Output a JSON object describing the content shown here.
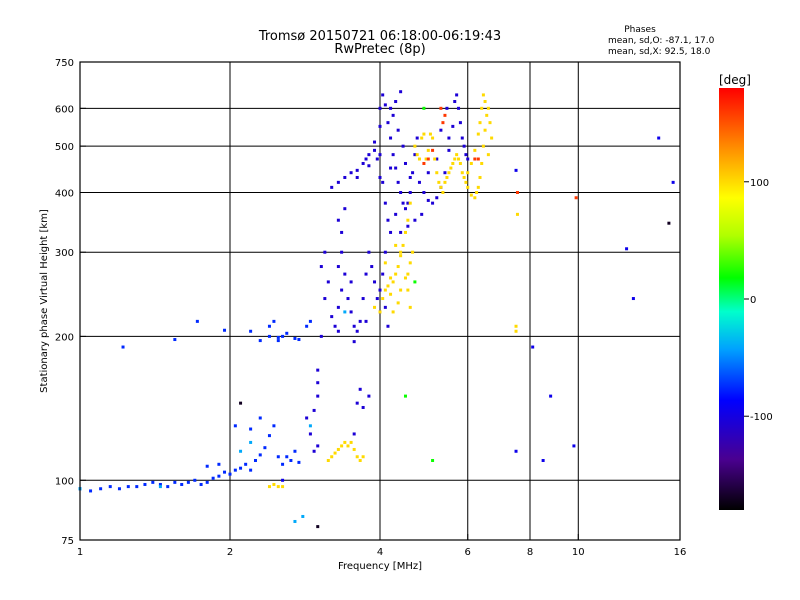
{
  "chart_data": {
    "type": "scatter",
    "title": "Tromsø 20150721 06:18:00-06:19:43",
    "subtitle": "RwPretec (8p)",
    "phase_stats": {
      "header": "Phases",
      "line1": "mean, sd,O: -87.1, 17.0",
      "line2": "mean, sd,X:  92.5, 18.0"
    },
    "xlabel": "Frequency [MHz]",
    "ylabel": "Stationary phase Virtual Height [km]",
    "x_scale": "log",
    "y_scale": "log",
    "xlim": [
      1,
      16
    ],
    "ylim": [
      75,
      750
    ],
    "x_ticks": [
      1,
      2,
      4,
      6,
      8,
      10,
      16
    ],
    "x_tick_labels": [
      "1",
      "2",
      "4",
      "6",
      "8",
      "10",
      "16"
    ],
    "y_ticks": [
      75,
      100,
      200,
      300,
      400,
      500,
      600,
      750
    ],
    "y_tick_labels": [
      "75",
      "100",
      "200",
      "300",
      "400",
      "500",
      "600",
      "750"
    ],
    "x_grid": [
      2,
      4,
      6,
      8,
      10
    ],
    "y_grid": [
      100,
      200,
      300,
      400,
      500,
      600
    ],
    "grid": true,
    "colorbar": {
      "label": "[deg]",
      "range": [
        -180,
        180
      ],
      "ticks": [
        100,
        0,
        -100
      ],
      "tick_labels": [
        "100",
        "0",
        "-100"
      ]
    },
    "series": [
      {
        "points": [
          [
            1.0,
            96
          ],
          [
            1.05,
            95
          ],
          [
            1.1,
            96
          ],
          [
            1.15,
            97
          ],
          [
            1.2,
            96
          ],
          [
            1.25,
            97
          ],
          [
            1.3,
            97
          ],
          [
            1.35,
            98
          ],
          [
            1.4,
            99
          ],
          [
            1.45,
            98
          ],
          [
            1.5,
            97
          ],
          [
            1.55,
            99
          ],
          [
            1.6,
            98
          ],
          [
            1.65,
            99
          ],
          [
            1.7,
            100
          ],
          [
            1.75,
            98
          ],
          [
            1.8,
            99
          ],
          [
            1.85,
            101
          ],
          [
            1.9,
            102
          ],
          [
            1.95,
            104
          ],
          [
            2.0,
            103
          ],
          [
            2.05,
            105
          ],
          [
            2.1,
            106
          ],
          [
            2.15,
            108
          ],
          [
            2.2,
            105
          ],
          [
            2.25,
            110
          ],
          [
            2.3,
            113
          ],
          [
            2.35,
            117
          ],
          [
            2.4,
            124
          ],
          [
            2.45,
            130
          ],
          [
            2.5,
            112
          ],
          [
            2.55,
            108
          ],
          [
            2.6,
            112
          ],
          [
            2.65,
            110
          ],
          [
            2.7,
            115
          ],
          [
            2.75,
            109
          ],
          [
            1.8,
            107
          ],
          [
            1.9,
            108
          ],
          [
            2.05,
            130
          ],
          [
            2.2,
            128
          ],
          [
            2.3,
            135
          ],
          [
            2.2,
            205
          ],
          [
            2.3,
            196
          ],
          [
            2.4,
            200
          ],
          [
            2.5,
            199
          ],
          [
            2.55,
            200
          ],
          [
            2.6,
            203
          ],
          [
            2.4,
            210
          ],
          [
            2.45,
            215
          ],
          [
            2.5,
            196
          ],
          [
            2.7,
            198
          ],
          [
            2.75,
            197
          ],
          [
            2.85,
            210
          ],
          [
            2.9,
            215
          ],
          [
            1.22,
            190
          ],
          [
            1.55,
            197
          ],
          [
            1.72,
            215
          ],
          [
            1.95,
            206
          ]
        ],
        "phase": -75
      },
      {
        "points": [
          [
            3.0,
            170
          ],
          [
            3.0,
            160
          ],
          [
            3.0,
            150
          ],
          [
            2.95,
            140
          ],
          [
            2.9,
            125
          ],
          [
            2.85,
            135
          ],
          [
            2.95,
            115
          ],
          [
            3.0,
            118
          ],
          [
            3.05,
            200
          ],
          [
            3.1,
            240
          ],
          [
            3.05,
            280
          ],
          [
            3.1,
            300
          ],
          [
            3.15,
            260
          ],
          [
            3.2,
            220
          ],
          [
            3.25,
            210
          ],
          [
            3.3,
            230
          ],
          [
            3.35,
            250
          ],
          [
            3.3,
            280
          ],
          [
            3.35,
            300
          ],
          [
            3.4,
            270
          ],
          [
            3.45,
            240
          ],
          [
            3.5,
            225
          ],
          [
            3.55,
            210
          ],
          [
            3.6,
            205
          ],
          [
            3.65,
            215
          ],
          [
            3.7,
            240
          ],
          [
            3.75,
            270
          ],
          [
            3.8,
            300
          ],
          [
            3.85,
            280
          ],
          [
            3.9,
            260
          ],
          [
            3.95,
            240
          ],
          [
            4.0,
            225
          ],
          [
            3.75,
            215
          ],
          [
            3.5,
            260
          ],
          [
            3.3,
            205
          ],
          [
            3.55,
            195
          ],
          [
            3.6,
            145
          ],
          [
            3.7,
            142
          ],
          [
            3.8,
            150
          ],
          [
            3.65,
            155
          ],
          [
            3.55,
            125
          ],
          [
            3.2,
            410
          ],
          [
            3.3,
            420
          ],
          [
            3.4,
            430
          ],
          [
            3.5,
            440
          ],
          [
            3.6,
            445
          ],
          [
            3.7,
            460
          ],
          [
            3.8,
            480
          ],
          [
            3.9,
            510
          ],
          [
            4.0,
            550
          ],
          [
            4.0,
            600
          ],
          [
            4.05,
            640
          ],
          [
            4.1,
            610
          ],
          [
            4.15,
            560
          ],
          [
            4.2,
            520
          ],
          [
            4.25,
            480
          ],
          [
            4.3,
            450
          ],
          [
            4.35,
            420
          ],
          [
            4.4,
            400
          ],
          [
            4.45,
            380
          ],
          [
            4.5,
            370
          ],
          [
            4.55,
            380
          ],
          [
            4.6,
            400
          ],
          [
            4.65,
            440
          ],
          [
            4.7,
            480
          ],
          [
            4.75,
            520
          ],
          [
            4.0,
            480
          ],
          [
            4.05,
            420
          ],
          [
            4.1,
            380
          ],
          [
            4.15,
            350
          ],
          [
            4.2,
            330
          ],
          [
            4.1,
            300
          ],
          [
            4.05,
            270
          ],
          [
            4.0,
            250
          ],
          [
            4.1,
            230
          ],
          [
            4.15,
            210
          ],
          [
            4.2,
            450
          ],
          [
            4.3,
            620
          ],
          [
            4.25,
            580
          ],
          [
            4.35,
            540
          ],
          [
            4.45,
            500
          ],
          [
            4.5,
            460
          ],
          [
            4.6,
            430
          ],
          [
            4.8,
            420
          ],
          [
            4.9,
            400
          ],
          [
            5.0,
            385
          ],
          [
            5.1,
            380
          ],
          [
            5.2,
            390
          ],
          [
            5.3,
            410
          ],
          [
            5.4,
            440
          ],
          [
            5.5,
            490
          ],
          [
            5.6,
            550
          ],
          [
            5.65,
            620
          ],
          [
            5.7,
            640
          ],
          [
            5.75,
            600
          ],
          [
            5.8,
            560
          ],
          [
            5.85,
            520
          ],
          [
            5.9,
            500
          ],
          [
            5.95,
            480
          ],
          [
            6.0,
            470
          ],
          [
            5.5,
            520
          ],
          [
            5.45,
            600
          ],
          [
            5.3,
            540
          ],
          [
            5.2,
            470
          ],
          [
            5.0,
            440
          ],
          [
            4.85,
            360
          ],
          [
            4.7,
            350
          ],
          [
            4.55,
            340
          ],
          [
            4.4,
            330
          ],
          [
            4.3,
            360
          ],
          [
            3.3,
            350
          ],
          [
            3.35,
            330
          ],
          [
            3.4,
            370
          ],
          [
            3.6,
            430
          ],
          [
            3.75,
            470
          ],
          [
            3.8,
            455
          ],
          [
            3.9,
            490
          ],
          [
            3.95,
            470
          ],
          [
            4.0,
            430
          ],
          [
            4.2,
            600
          ],
          [
            4.4,
            650
          ]
        ],
        "phase": -105
      },
      {
        "points": [
          [
            3.15,
            110
          ],
          [
            3.2,
            112
          ],
          [
            3.25,
            114
          ],
          [
            3.3,
            116
          ],
          [
            3.35,
            118
          ],
          [
            3.4,
            120
          ],
          [
            3.45,
            118
          ],
          [
            3.5,
            120
          ],
          [
            3.55,
            116
          ],
          [
            3.6,
            112
          ],
          [
            3.65,
            110
          ],
          [
            3.7,
            112
          ],
          [
            2.4,
            97
          ],
          [
            2.45,
            98
          ],
          [
            2.5,
            97
          ],
          [
            2.55,
            97
          ],
          [
            3.9,
            230
          ],
          [
            4.0,
            225
          ],
          [
            4.05,
            240
          ],
          [
            4.1,
            250
          ],
          [
            4.15,
            255
          ],
          [
            4.2,
            245
          ],
          [
            4.25,
            260
          ],
          [
            4.3,
            270
          ],
          [
            4.35,
            280
          ],
          [
            4.4,
            295
          ],
          [
            4.45,
            310
          ],
          [
            4.5,
            330
          ],
          [
            4.55,
            350
          ],
          [
            4.6,
            380
          ],
          [
            4.4,
            300
          ],
          [
            4.3,
            310
          ],
          [
            4.2,
            265
          ],
          [
            4.1,
            285
          ],
          [
            4.5,
            265
          ],
          [
            4.55,
            270
          ],
          [
            4.6,
            285
          ],
          [
            4.65,
            300
          ],
          [
            4.55,
            250
          ],
          [
            4.7,
            500
          ],
          [
            4.75,
            480
          ],
          [
            4.8,
            470
          ],
          [
            4.85,
            520
          ],
          [
            4.9,
            530
          ],
          [
            4.95,
            470
          ],
          [
            5.0,
            490
          ],
          [
            5.05,
            530
          ],
          [
            5.1,
            520
          ],
          [
            5.15,
            470
          ],
          [
            5.2,
            440
          ],
          [
            5.25,
            420
          ],
          [
            5.3,
            410
          ],
          [
            5.35,
            400
          ],
          [
            5.4,
            420
          ],
          [
            5.45,
            430
          ],
          [
            5.5,
            440
          ],
          [
            5.55,
            450
          ],
          [
            5.6,
            460
          ],
          [
            5.65,
            470
          ],
          [
            5.7,
            480
          ],
          [
            5.75,
            470
          ],
          [
            5.8,
            460
          ],
          [
            5.85,
            440
          ],
          [
            5.9,
            430
          ],
          [
            5.95,
            420
          ],
          [
            6.0,
            440
          ],
          [
            6.1,
            460
          ],
          [
            6.2,
            490
          ],
          [
            6.3,
            530
          ],
          [
            6.35,
            560
          ],
          [
            6.4,
            600
          ],
          [
            6.45,
            640
          ],
          [
            6.5,
            620
          ],
          [
            6.55,
            580
          ],
          [
            6.5,
            540
          ],
          [
            6.45,
            500
          ],
          [
            6.4,
            460
          ],
          [
            6.35,
            430
          ],
          [
            6.3,
            410
          ],
          [
            6.25,
            400
          ],
          [
            6.2,
            390
          ],
          [
            6.1,
            395
          ],
          [
            6.0,
            410
          ],
          [
            6.6,
            600
          ],
          [
            6.65,
            560
          ],
          [
            6.7,
            520
          ],
          [
            6.6,
            480
          ],
          [
            7.5,
            210
          ],
          [
            7.5,
            205
          ],
          [
            7.55,
            360
          ],
          [
            4.4,
            250
          ],
          [
            4.35,
            235
          ],
          [
            4.25,
            225
          ],
          [
            4.6,
            230
          ]
        ],
        "phase": 100
      },
      {
        "points": [
          [
            5.3,
            600
          ],
          [
            5.4,
            580
          ],
          [
            5.35,
            560
          ],
          [
            4.9,
            460
          ],
          [
            5.0,
            470
          ],
          [
            5.1,
            490
          ],
          [
            6.2,
            470
          ],
          [
            6.3,
            470
          ],
          [
            7.55,
            400
          ],
          [
            9.9,
            390
          ]
        ],
        "phase": 160
      },
      {
        "points": [
          [
            4.5,
            150
          ],
          [
            5.1,
            110
          ],
          [
            4.7,
            260
          ],
          [
            4.9,
            600
          ]
        ],
        "phase": 20
      },
      {
        "points": [
          [
            1.0,
            96
          ],
          [
            1.45,
            97
          ],
          [
            2.7,
            82
          ],
          [
            2.8,
            84
          ],
          [
            2.1,
            115
          ],
          [
            2.2,
            120
          ],
          [
            2.9,
            130
          ],
          [
            3.4,
            225
          ]
        ],
        "phase": -40
      },
      {
        "points": [
          [
            7.5,
            445
          ],
          [
            7.5,
            115
          ],
          [
            8.5,
            110
          ],
          [
            8.8,
            150
          ],
          [
            12.5,
            305
          ],
          [
            12.9,
            240
          ],
          [
            14.5,
            520
          ],
          [
            15.5,
            420
          ],
          [
            9.8,
            118
          ],
          [
            8.1,
            190
          ],
          [
            2.55,
            100
          ]
        ],
        "phase": -95
      },
      {
        "points": [
          [
            15.2,
            345
          ],
          [
            3.0,
            80
          ],
          [
            2.1,
            145
          ]
        ],
        "phase": -170
      }
    ]
  }
}
